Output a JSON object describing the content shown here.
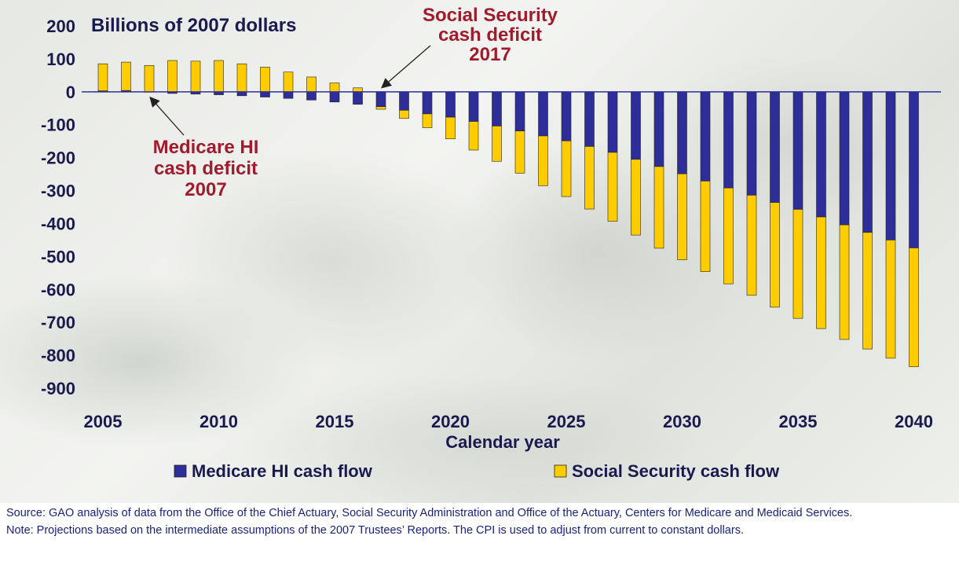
{
  "chart_data": {
    "type": "bar",
    "stacked": true,
    "ylabel": "Billions of 2007 dollars",
    "xlabel": "Calendar year",
    "ylim": [
      -900,
      200
    ],
    "yticks": [
      200,
      100,
      0,
      -100,
      -200,
      -300,
      -400,
      -500,
      -600,
      -700,
      -800,
      -900
    ],
    "xticks": [
      2005,
      2010,
      2015,
      2020,
      2025,
      2030,
      2035,
      2040
    ],
    "categories": [
      2005,
      2006,
      2007,
      2008,
      2009,
      2010,
      2011,
      2012,
      2013,
      2014,
      2015,
      2016,
      2017,
      2018,
      2019,
      2020,
      2021,
      2022,
      2023,
      2024,
      2025,
      2026,
      2027,
      2028,
      2029,
      2030,
      2031,
      2032,
      2033,
      2034,
      2035,
      2036,
      2037,
      2038,
      2039,
      2040
    ],
    "series": [
      {
        "name": "Medicare HI cash flow",
        "color": "#2e2e9a",
        "values": [
          3,
          4,
          -1,
          -5,
          -7,
          -9,
          -12,
          -16,
          -20,
          -25,
          -31,
          -38,
          -45,
          -56,
          -67,
          -77,
          -90,
          -104,
          -119,
          -134,
          -149,
          -166,
          -184,
          -205,
          -227,
          -249,
          -271,
          -292,
          -314,
          -336,
          -357,
          -380,
          -404,
          -427,
          -450,
          -474
        ]
      },
      {
        "name": "Social Security cash flow",
        "color": "#ffcc00",
        "values": [
          82,
          86,
          80,
          95,
          93,
          95,
          85,
          75,
          60,
          45,
          27,
          12,
          -8,
          -25,
          -42,
          -66,
          -87,
          -107,
          -128,
          -151,
          -169,
          -190,
          -209,
          -230,
          -248,
          -261,
          -275,
          -291,
          -304,
          -318,
          -331,
          -339,
          -348,
          -354,
          -359,
          -361
        ]
      }
    ],
    "annotations": [
      {
        "text_lines": [
          "Social Security",
          "cash deficit",
          "2017"
        ],
        "year": 2017
      },
      {
        "text_lines": [
          "Medicare HI",
          "cash deficit",
          "2007"
        ],
        "year": 2007
      }
    ],
    "legend_position": "bottom",
    "grid": false
  },
  "footer": {
    "source": "Source:  GAO analysis of data from the Office of the Chief Actuary, Social Security Administration and Office of the Actuary, Centers for Medicare and Medicaid Services.",
    "note": "Note:  Projections based on the intermediate assumptions of the 2007 Trustees’ Reports. The CPI is used to adjust from current to constant dollars."
  }
}
